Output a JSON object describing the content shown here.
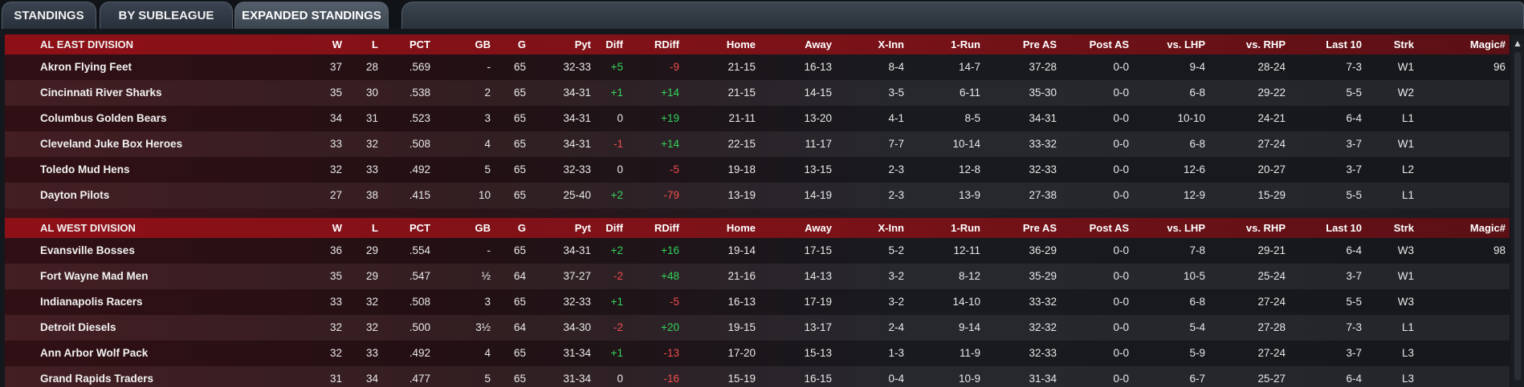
{
  "tabs": [
    "STANDINGS",
    "BY SUBLEAGUE",
    "EXPANDED STANDINGS"
  ],
  "columns": [
    "W",
    "L",
    "PCT",
    "GB",
    "G",
    "Pyt",
    "Diff",
    "RDiff",
    "Home",
    "Away",
    "X-Inn",
    "1-Run",
    "Pre AS",
    "Post AS",
    "vs. LHP",
    "vs. RHP",
    "Last 10",
    "Strk",
    "Magic#"
  ],
  "colors": {
    "positive": "#33d35a",
    "negative": "#ef4d4d",
    "header_red": "#8e1017"
  },
  "divisions": [
    {
      "name": "AL EAST DIVISION",
      "teams": [
        {
          "team": "Akron  Flying Feet",
          "W": "37",
          "L": "28",
          "PCT": ".569",
          "GB": "-",
          "G": "65",
          "Pyt": "32-33",
          "Diff": "+5",
          "RDiff": "-9",
          "Home": "21-15",
          "Away": "16-13",
          "XInn": "8-4",
          "OneRun": "14-7",
          "PreAS": "37-28",
          "PostAS": "0-0",
          "vsLHP": "9-4",
          "vsRHP": "28-24",
          "Last10": "7-3",
          "Strk": "W1",
          "Magic": "96"
        },
        {
          "team": "Cincinnati River Sharks",
          "W": "35",
          "L": "30",
          "PCT": ".538",
          "GB": "2",
          "G": "65",
          "Pyt": "34-31",
          "Diff": "+1",
          "RDiff": "+14",
          "Home": "21-15",
          "Away": "14-15",
          "XInn": "3-5",
          "OneRun": "6-11",
          "PreAS": "35-30",
          "PostAS": "0-0",
          "vsLHP": "6-8",
          "vsRHP": "29-22",
          "Last10": "5-5",
          "Strk": "W2",
          "Magic": ""
        },
        {
          "team": "Columbus Golden Bears",
          "W": "34",
          "L": "31",
          "PCT": ".523",
          "GB": "3",
          "G": "65",
          "Pyt": "34-31",
          "Diff": "0",
          "RDiff": "+19",
          "Home": "21-11",
          "Away": "13-20",
          "XInn": "4-1",
          "OneRun": "8-5",
          "PreAS": "34-31",
          "PostAS": "0-0",
          "vsLHP": "10-10",
          "vsRHP": "24-21",
          "Last10": "6-4",
          "Strk": "L1",
          "Magic": ""
        },
        {
          "team": "Cleveland Juke Box Heroes",
          "W": "33",
          "L": "32",
          "PCT": ".508",
          "GB": "4",
          "G": "65",
          "Pyt": "34-31",
          "Diff": "-1",
          "RDiff": "+14",
          "Home": "22-15",
          "Away": "11-17",
          "XInn": "7-7",
          "OneRun": "10-14",
          "PreAS": "33-32",
          "PostAS": "0-0",
          "vsLHP": "6-8",
          "vsRHP": "27-24",
          "Last10": "3-7",
          "Strk": "W1",
          "Magic": ""
        },
        {
          "team": "Toledo  Mud Hens",
          "W": "32",
          "L": "33",
          "PCT": ".492",
          "GB": "5",
          "G": "65",
          "Pyt": "32-33",
          "Diff": "0",
          "RDiff": "-5",
          "Home": "19-18",
          "Away": "13-15",
          "XInn": "2-3",
          "OneRun": "12-8",
          "PreAS": "32-33",
          "PostAS": "0-0",
          "vsLHP": "12-6",
          "vsRHP": "20-27",
          "Last10": "3-7",
          "Strk": "L2",
          "Magic": ""
        },
        {
          "team": "Dayton Pilots",
          "W": "27",
          "L": "38",
          "PCT": ".415",
          "GB": "10",
          "G": "65",
          "Pyt": "25-40",
          "Diff": "+2",
          "RDiff": "-79",
          "Home": "13-19",
          "Away": "14-19",
          "XInn": "2-3",
          "OneRun": "13-9",
          "PreAS": "27-38",
          "PostAS": "0-0",
          "vsLHP": "12-9",
          "vsRHP": "15-29",
          "Last10": "5-5",
          "Strk": "L1",
          "Magic": ""
        }
      ]
    },
    {
      "name": "AL WEST DIVISION",
      "teams": [
        {
          "team": "Evansville Bosses",
          "W": "36",
          "L": "29",
          "PCT": ".554",
          "GB": "-",
          "G": "65",
          "Pyt": "34-31",
          "Diff": "+2",
          "RDiff": "+16",
          "Home": "19-14",
          "Away": "17-15",
          "XInn": "5-2",
          "OneRun": "12-11",
          "PreAS": "36-29",
          "PostAS": "0-0",
          "vsLHP": "7-8",
          "vsRHP": "29-21",
          "Last10": "6-4",
          "Strk": "W3",
          "Magic": "98"
        },
        {
          "team": "Fort Wayne Mad Men",
          "W": "35",
          "L": "29",
          "PCT": ".547",
          "GB": "½",
          "G": "64",
          "Pyt": "37-27",
          "Diff": "-2",
          "RDiff": "+48",
          "Home": "21-16",
          "Away": "14-13",
          "XInn": "3-2",
          "OneRun": "8-12",
          "PreAS": "35-29",
          "PostAS": "0-0",
          "vsLHP": "10-5",
          "vsRHP": "25-24",
          "Last10": "3-7",
          "Strk": "W1",
          "Magic": ""
        },
        {
          "team": "Indianapolis Racers",
          "W": "33",
          "L": "32",
          "PCT": ".508",
          "GB": "3",
          "G": "65",
          "Pyt": "32-33",
          "Diff": "+1",
          "RDiff": "-5",
          "Home": "16-13",
          "Away": "17-19",
          "XInn": "3-2",
          "OneRun": "14-10",
          "PreAS": "33-32",
          "PostAS": "0-0",
          "vsLHP": "6-8",
          "vsRHP": "27-24",
          "Last10": "5-5",
          "Strk": "W3",
          "Magic": ""
        },
        {
          "team": "Detroit Diesels",
          "W": "32",
          "L": "32",
          "PCT": ".500",
          "GB": "3½",
          "G": "64",
          "Pyt": "34-30",
          "Diff": "-2",
          "RDiff": "+20",
          "Home": "19-15",
          "Away": "13-17",
          "XInn": "2-4",
          "OneRun": "9-14",
          "PreAS": "32-32",
          "PostAS": "0-0",
          "vsLHP": "5-4",
          "vsRHP": "27-28",
          "Last10": "7-3",
          "Strk": "L1",
          "Magic": ""
        },
        {
          "team": "Ann Arbor Wolf Pack",
          "W": "32",
          "L": "33",
          "PCT": ".492",
          "GB": "4",
          "G": "65",
          "Pyt": "31-34",
          "Diff": "+1",
          "RDiff": "-13",
          "Home": "17-20",
          "Away": "15-13",
          "XInn": "1-3",
          "OneRun": "11-9",
          "PreAS": "32-33",
          "PostAS": "0-0",
          "vsLHP": "5-9",
          "vsRHP": "27-24",
          "Last10": "3-7",
          "Strk": "L3",
          "Magic": ""
        },
        {
          "team": "Grand Rapids Traders",
          "W": "31",
          "L": "34",
          "PCT": ".477",
          "GB": "5",
          "G": "65",
          "Pyt": "31-34",
          "Diff": "0",
          "RDiff": "-16",
          "Home": "15-19",
          "Away": "16-15",
          "XInn": "0-4",
          "OneRun": "10-9",
          "PreAS": "31-34",
          "PostAS": "0-0",
          "vsLHP": "6-7",
          "vsRHP": "25-27",
          "Last10": "6-4",
          "Strk": "L3",
          "Magic": ""
        }
      ]
    }
  ]
}
